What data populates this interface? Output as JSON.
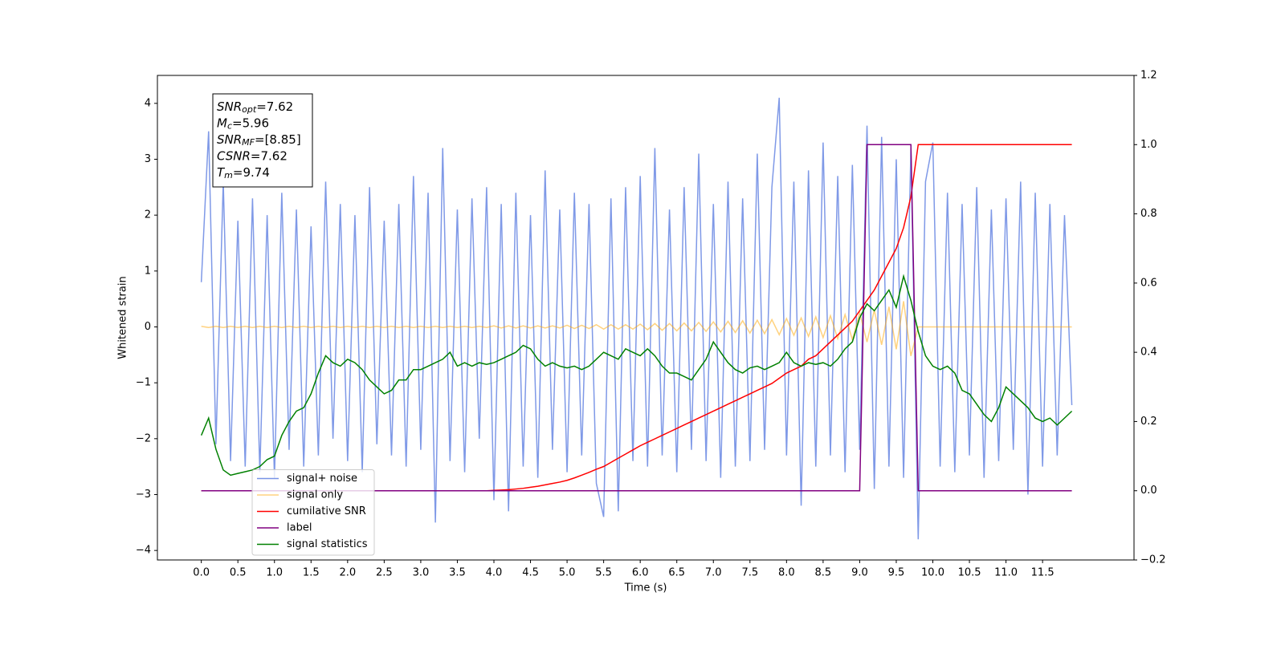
{
  "chart_data": {
    "type": "line",
    "xlabel": "Time (s)",
    "ylabel": "Whitened strain",
    "xlim": [
      -0.6,
      12.75
    ],
    "ylim": [
      -4.17,
      4.5
    ],
    "y2lim": [
      -0.2,
      1.2
    ],
    "xticks": [
      {
        "value": 0,
        "label": "0.0"
      },
      0.5,
      {
        "value": 1,
        "label": "1.0"
      },
      1.5,
      {
        "value": 2,
        "label": "2.0"
      },
      2.5,
      {
        "value": 3,
        "label": "3.0"
      },
      3.5,
      {
        "value": 4,
        "label": "4.0"
      },
      4.5,
      {
        "value": 5,
        "label": "5.0"
      },
      5.5,
      {
        "value": 6,
        "label": "6.0"
      },
      6.5,
      {
        "value": 7,
        "label": "7.0"
      },
      7.5,
      {
        "value": 8,
        "label": "8.0"
      },
      8.5,
      {
        "value": 9,
        "label": "9.0"
      },
      9.5,
      {
        "value": 10,
        "label": "10.0"
      },
      10.5,
      {
        "value": 11,
        "label": "11.0"
      },
      11.5
    ],
    "yticks": [
      {
        "value": -4,
        "label": "−4"
      },
      {
        "value": -3,
        "label": "−3"
      },
      {
        "value": -2,
        "label": "−2"
      },
      {
        "value": -1,
        "label": "−1"
      },
      0,
      1,
      2,
      3,
      4
    ],
    "y2ticks": [
      {
        "value": -0.2,
        "label": "−0.2"
      },
      {
        "value": 0,
        "label": "0.0"
      },
      0.2,
      0.4,
      0.6,
      0.8,
      {
        "value": 1,
        "label": "1.0"
      },
      1.2
    ],
    "legend": "lower left",
    "annotations": [
      {
        "main": "SNR",
        "sub": "opt",
        "text": "=7.62"
      },
      {
        "main": "M",
        "sub": "c",
        "text": "=5.96"
      },
      {
        "main": "SNR",
        "sub": "MF",
        "text": "=[8.85]"
      },
      {
        "main": "CSNR",
        "text": "=7.62"
      },
      {
        "main": "T",
        "sub": "m",
        "text": "=9.74"
      }
    ],
    "x": [
      0,
      0.1,
      0.2,
      0.3,
      0.4,
      0.5,
      0.6,
      0.7,
      0.8,
      0.9,
      1,
      1.1,
      1.2,
      1.3,
      1.4,
      1.5,
      1.6,
      1.7,
      1.8,
      1.9,
      2,
      2.1,
      2.2,
      2.3,
      2.4,
      2.5,
      2.6,
      2.7,
      2.8,
      2.9,
      3,
      3.1,
      3.2,
      3.3,
      3.4,
      3.5,
      3.6,
      3.7,
      3.8,
      3.9,
      4,
      4.1,
      4.2,
      4.3,
      4.4,
      4.5,
      4.6,
      4.7,
      4.8,
      4.9,
      5,
      5.1,
      5.2,
      5.3,
      5.4,
      5.5,
      5.6,
      5.7,
      5.8,
      5.9,
      6,
      6.1,
      6.2,
      6.3,
      6.4,
      6.5,
      6.6,
      6.7,
      6.8,
      6.9,
      7,
      7.1,
      7.2,
      7.3,
      7.4,
      7.5,
      7.6,
      7.7,
      7.8,
      7.9,
      8,
      8.1,
      8.2,
      8.3,
      8.4,
      8.5,
      8.6,
      8.7,
      8.8,
      8.9,
      9,
      9.1,
      9.2,
      9.3,
      9.4,
      9.5,
      9.6,
      9.7,
      9.8,
      9.9,
      10,
      10.1,
      10.2,
      10.3,
      10.4,
      10.5,
      10.6,
      10.7,
      10.8,
      10.9,
      11,
      11.1,
      11.2,
      11.3,
      11.4,
      11.5,
      11.6,
      11.7,
      11.8,
      11.9
    ],
    "series": [
      {
        "name": "signal+ noise",
        "color": "#7893e6",
        "values": [
          0.8,
          3.5,
          -2.1,
          2.6,
          -2.4,
          1.9,
          -2.5,
          2.3,
          -2.6,
          2.0,
          -2.7,
          2.4,
          -2.2,
          2.1,
          -2.5,
          1.8,
          -2.3,
          2.6,
          -2.0,
          2.2,
          -2.4,
          2.0,
          -2.6,
          2.5,
          -2.1,
          1.9,
          -2.3,
          2.2,
          -2.5,
          2.7,
          -2.2,
          2.4,
          -3.5,
          3.2,
          -2.4,
          2.1,
          -2.6,
          2.3,
          -2.0,
          2.5,
          -3.1,
          2.2,
          -3.3,
          2.4,
          -2.5,
          2.0,
          -2.7,
          2.8,
          -2.2,
          2.1,
          -2.6,
          2.4,
          -2.3,
          2.2,
          -2.8,
          -3.4,
          2.3,
          -3.3,
          2.5,
          -2.4,
          2.7,
          -2.5,
          3.2,
          -2.3,
          2.1,
          -2.6,
          2.5,
          -2.2,
          3.1,
          -2.4,
          2.2,
          -2.7,
          2.6,
          -2.5,
          2.3,
          -2.4,
          3.1,
          -2.2,
          2.5,
          4.1,
          -2.3,
          2.6,
          -3.2,
          2.8,
          -2.5,
          3.3,
          -2.3,
          2.7,
          -2.6,
          2.9,
          -2.2,
          3.6,
          -2.9,
          3.4,
          -2.5,
          3.0,
          -2.7,
          3.2,
          -3.8,
          2.6,
          3.3,
          -2.5,
          2.4,
          -2.6,
          2.2,
          -2.3,
          2.5,
          -2.7,
          2.1,
          -2.4,
          2.3,
          -2.2,
          2.6,
          -3.0,
          2.4,
          -2.5,
          2.2,
          -2.3,
          2.0,
          -1.4
        ]
      },
      {
        "name": "signal only",
        "color": "#ffa500",
        "values": [
          0.01,
          -0.01,
          0.01,
          -0.01,
          0.01,
          -0.01,
          0.01,
          -0.01,
          0.01,
          -0.01,
          0.01,
          -0.01,
          0.01,
          -0.01,
          0.01,
          -0.01,
          0.01,
          -0.01,
          0.01,
          -0.01,
          0.01,
          -0.01,
          0.01,
          -0.01,
          0.01,
          -0.01,
          0.01,
          -0.01,
          0.01,
          -0.01,
          0.01,
          -0.01,
          0.01,
          -0.01,
          0.01,
          -0.01,
          0.01,
          -0.01,
          0.01,
          -0.01,
          0.02,
          -0.02,
          0.02,
          -0.02,
          0.02,
          -0.02,
          0.02,
          -0.02,
          0.02,
          -0.02,
          0.03,
          -0.03,
          0.03,
          -0.03,
          0.04,
          -0.04,
          0.04,
          -0.04,
          0.04,
          -0.04,
          0.05,
          -0.05,
          0.06,
          -0.06,
          0.06,
          -0.07,
          0.07,
          -0.07,
          0.08,
          -0.08,
          0.09,
          -0.09,
          0.1,
          -0.1,
          0.11,
          -0.11,
          0.12,
          -0.12,
          0.13,
          -0.14,
          0.15,
          -0.15,
          0.16,
          -0.17,
          0.18,
          -0.19,
          0.2,
          -0.21,
          0.22,
          -0.23,
          0.25,
          -0.27,
          0.3,
          -0.32,
          0.36,
          -0.4,
          0.46,
          -0.52,
          0,
          0,
          0,
          0,
          0,
          0,
          0,
          0,
          0,
          0,
          0,
          0,
          0,
          0,
          0,
          0,
          0,
          0,
          0,
          0,
          0,
          0
        ]
      },
      {
        "name": "cumilative SNR",
        "color": "#ff0000",
        "axis": "y2",
        "values": [
          0,
          0,
          0,
          0,
          0,
          0,
          0,
          0,
          0,
          0,
          0,
          0,
          0,
          0,
          0,
          0,
          0,
          0,
          0,
          0,
          0,
          0,
          0,
          0,
          0,
          0,
          0,
          0,
          0,
          0,
          0,
          0,
          0,
          0,
          0,
          0,
          0,
          0,
          0,
          0,
          0.001,
          0.002,
          0.003,
          0.005,
          0.007,
          0.01,
          0.013,
          0.017,
          0.021,
          0.025,
          0.03,
          0.037,
          0.045,
          0.053,
          0.062,
          0.07,
          0.082,
          0.094,
          0.106,
          0.118,
          0.13,
          0.14,
          0.15,
          0.16,
          0.17,
          0.18,
          0.19,
          0.2,
          0.21,
          0.22,
          0.23,
          0.24,
          0.25,
          0.26,
          0.27,
          0.28,
          0.29,
          0.3,
          0.31,
          0.325,
          0.34,
          0.35,
          0.36,
          0.38,
          0.39,
          0.41,
          0.43,
          0.45,
          0.47,
          0.49,
          0.52,
          0.55,
          0.58,
          0.62,
          0.66,
          0.7,
          0.76,
          0.85,
          1,
          1,
          1,
          1,
          1,
          1,
          1,
          1,
          1,
          1,
          1,
          1,
          1,
          1,
          1,
          1,
          1,
          1,
          1,
          1,
          1,
          1
        ]
      },
      {
        "name": "label",
        "color": "#800080",
        "axis": "y2",
        "values": [
          0,
          0,
          0,
          0,
          0,
          0,
          0,
          0,
          0,
          0,
          0,
          0,
          0,
          0,
          0,
          0,
          0,
          0,
          0,
          0,
          0,
          0,
          0,
          0,
          0,
          0,
          0,
          0,
          0,
          0,
          0,
          0,
          0,
          0,
          0,
          0,
          0,
          0,
          0,
          0,
          0,
          0,
          0,
          0,
          0,
          0,
          0,
          0,
          0,
          0,
          0,
          0,
          0,
          0,
          0,
          0,
          0,
          0,
          0,
          0,
          0,
          0,
          0,
          0,
          0,
          0,
          0,
          0,
          0,
          0,
          0,
          0,
          0,
          0,
          0,
          0,
          0,
          0,
          0,
          0,
          0,
          0,
          0,
          0,
          0,
          0,
          0,
          0,
          0,
          0,
          0,
          1,
          1,
          1,
          1,
          1,
          1,
          1,
          0,
          0,
          0,
          0,
          0,
          0,
          0,
          0,
          0,
          0,
          0,
          0,
          0,
          0,
          0,
          0,
          0,
          0,
          0,
          0,
          0,
          0
        ]
      },
      {
        "name": "signal statistics",
        "color": "#008000",
        "axis": "y2",
        "values": [
          0.16,
          0.21,
          0.12,
          0.06,
          0.045,
          0.05,
          0.055,
          0.06,
          0.07,
          0.09,
          0.1,
          0.16,
          0.2,
          0.23,
          0.24,
          0.28,
          0.34,
          0.39,
          0.37,
          0.36,
          0.38,
          0.37,
          0.35,
          0.32,
          0.3,
          0.28,
          0.29,
          0.32,
          0.32,
          0.35,
          0.35,
          0.36,
          0.37,
          0.38,
          0.4,
          0.36,
          0.37,
          0.36,
          0.37,
          0.365,
          0.37,
          0.38,
          0.39,
          0.4,
          0.42,
          0.41,
          0.38,
          0.36,
          0.37,
          0.36,
          0.355,
          0.36,
          0.35,
          0.36,
          0.38,
          0.4,
          0.39,
          0.38,
          0.41,
          0.4,
          0.39,
          0.41,
          0.39,
          0.36,
          0.34,
          0.34,
          0.33,
          0.32,
          0.35,
          0.38,
          0.43,
          0.4,
          0.37,
          0.35,
          0.34,
          0.355,
          0.36,
          0.35,
          0.36,
          0.37,
          0.4,
          0.37,
          0.36,
          0.37,
          0.365,
          0.37,
          0.36,
          0.38,
          0.41,
          0.43,
          0.5,
          0.54,
          0.52,
          0.55,
          0.58,
          0.53,
          0.62,
          0.55,
          0.46,
          0.39,
          0.36,
          0.35,
          0.36,
          0.34,
          0.29,
          0.28,
          0.25,
          0.22,
          0.2,
          0.24,
          0.3,
          0.28,
          0.26,
          0.24,
          0.21,
          0.2,
          0.21,
          0.19,
          0.21,
          0.23
        ]
      }
    ]
  }
}
